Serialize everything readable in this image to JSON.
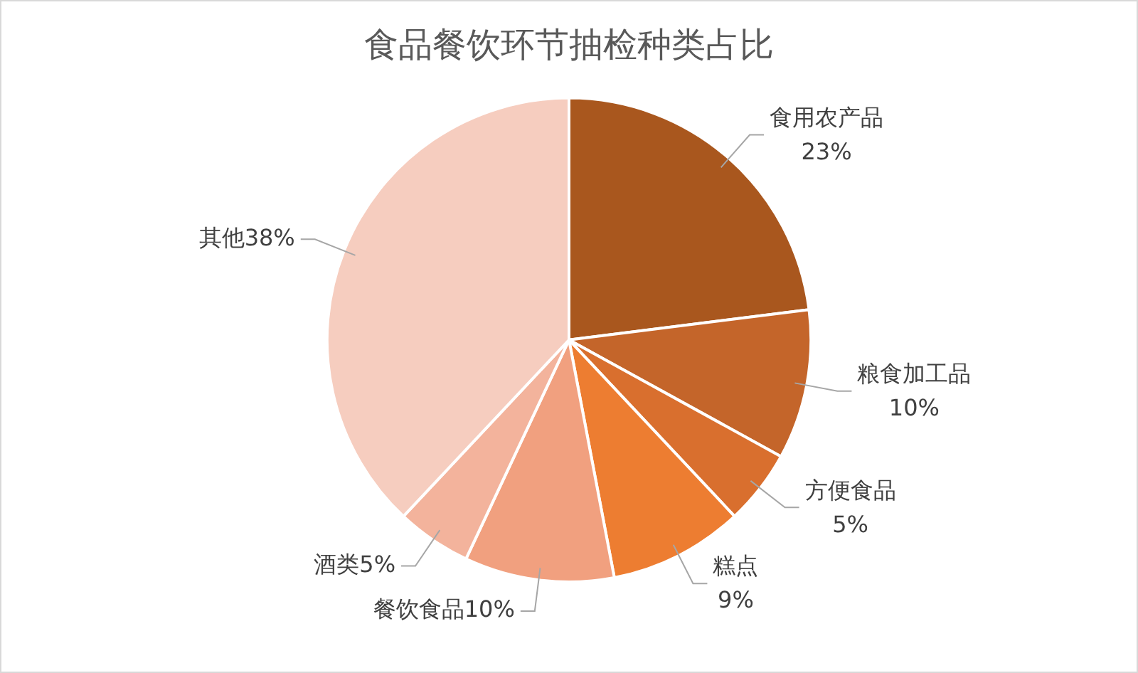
{
  "chart_data": {
    "type": "pie",
    "title": "食品餐饮环节抽检种类占比",
    "categories": [
      "食用农产品",
      "粮食加工品",
      "方便食品",
      "糕点",
      "餐饮食品",
      "酒类",
      "其他"
    ],
    "values": [
      23,
      10,
      5,
      9,
      10,
      5,
      38
    ],
    "value_labels": [
      "23%",
      "10%",
      "5%",
      "9%",
      "10%",
      "5%",
      "38%"
    ],
    "colors": [
      "#a9571e",
      "#c4652a",
      "#d96f2e",
      "#ed7d31",
      "#f1a07f",
      "#f3b39c",
      "#f6cdbf"
    ],
    "legend": false
  }
}
